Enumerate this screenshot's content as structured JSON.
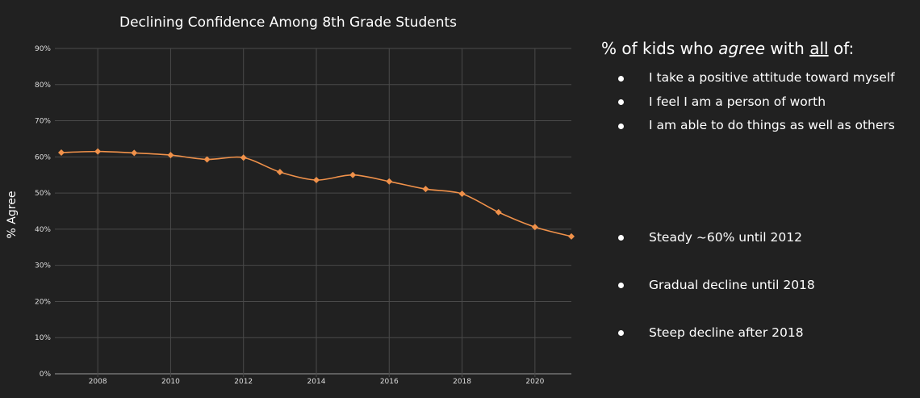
{
  "chart_data": {
    "type": "line",
    "title": "Declining Confidence Among 8th Grade Students",
    "xlabel": "",
    "ylabel": "% Agree",
    "x": [
      2007,
      2008,
      2009,
      2010,
      2011,
      2012,
      2013,
      2014,
      2015,
      2016,
      2017,
      2018,
      2019,
      2020,
      2021
    ],
    "xlim": [
      2007,
      2021
    ],
    "ylim": [
      0,
      90
    ],
    "x_ticks": [
      2008,
      2010,
      2012,
      2014,
      2016,
      2018,
      2020
    ],
    "y_ticks": [
      0,
      10,
      20,
      30,
      40,
      50,
      60,
      70,
      80,
      90
    ],
    "y_tick_labels": [
      "0%",
      "10%",
      "20%",
      "30%",
      "40%",
      "50%",
      "60%",
      "70%",
      "80%",
      "90%"
    ],
    "grid": true,
    "colors": {
      "line": "#f0914a",
      "background": "#212121",
      "grid": "#4a4a4a"
    },
    "series": [
      {
        "name": "% Agree",
        "values": [
          61.2,
          61.5,
          61.1,
          60.5,
          59.3,
          59.8,
          55.8,
          53.6,
          55.0,
          53.2,
          51.1,
          49.8,
          44.7,
          40.6,
          38.0
        ]
      }
    ]
  },
  "panel": {
    "heading": {
      "prefix": "% of kids who ",
      "agree": "agree",
      "middle": " with ",
      "all": "all",
      "suffix": " of:"
    },
    "criteria": [
      "I take a positive attitude toward myself",
      "I feel I am a person of worth",
      "I am able to do things as well as others"
    ],
    "observations": [
      "Steady ~60% until 2012",
      "Gradual decline until 2018",
      "Steep decline after 2018"
    ]
  }
}
